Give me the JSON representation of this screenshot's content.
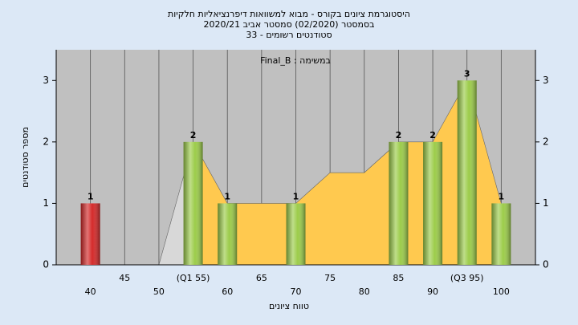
{
  "chart_data": {
    "type": "bar",
    "title": "היסטוגרמת ציונים בקורס - מבוא למשוואות דיפרנציאליות חלקיות",
    "subtitle": "בסמסטר (02/2020) סמסטר אביב 2020/21",
    "subtitle2": "סטודנטים רשומים - 33",
    "annotation": "במשימה : Final_B",
    "ylabel": "מספר סטודנטים",
    "xlabel": "טווח ציונים",
    "x": [
      40,
      45,
      50,
      55,
      60,
      65,
      70,
      75,
      80,
      85,
      90,
      95,
      100
    ],
    "values": [
      1,
      0,
      0,
      2,
      1,
      0,
      1,
      0,
      0,
      2,
      2,
      3,
      1
    ],
    "colors": [
      "#d42a2a",
      "#9ccc4a",
      "#9ccc4a",
      "#9ccc4a",
      "#9ccc4a",
      "#9ccc4a",
      "#9ccc4a",
      "#9ccc4a",
      "#9ccc4a",
      "#9ccc4a",
      "#9ccc4a",
      "#9ccc4a",
      "#9ccc4a"
    ],
    "areas": [
      {
        "color": "#d8d8d8",
        "values": [
          null,
          null,
          0,
          2,
          null,
          null,
          null,
          null,
          null,
          null,
          null,
          null,
          null
        ]
      },
      {
        "color": "#ffc94f",
        "values": [
          null,
          null,
          null,
          2,
          1,
          1,
          1,
          1.5,
          1.5,
          2,
          2,
          3,
          1
        ]
      }
    ],
    "xlim": [
      35,
      105
    ],
    "xticks": [
      40,
      45,
      50,
      {
        "value": 55,
        "label": "(Q1 55)"
      },
      60,
      65,
      70,
      75,
      80,
      85,
      90,
      {
        "value": 95,
        "label": "(Q3 95)"
      },
      100
    ],
    "ylim": [
      0,
      3.5
    ],
    "yticks": [
      0,
      1,
      2,
      3
    ],
    "grid": true,
    "plot_background": "#c0c0c0"
  }
}
